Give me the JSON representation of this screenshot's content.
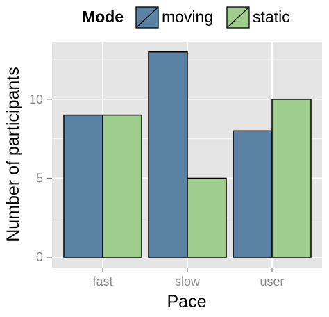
{
  "chart_data": {
    "type": "bar",
    "categories": [
      "fast",
      "slow",
      "user"
    ],
    "series": [
      {
        "name": "moving",
        "values": [
          9,
          13,
          8
        ]
      },
      {
        "name": "static",
        "values": [
          9,
          5,
          10
        ]
      }
    ],
    "xlabel": "Pace",
    "ylabel": "Number of participants",
    "ylim": [
      0,
      13.65
    ],
    "yticks": [
      0,
      5,
      10
    ],
    "grid": true,
    "legend": {
      "title": "Mode",
      "position": "top"
    },
    "colors": {
      "moving": "#5a82a4",
      "static": "#9fcd8d",
      "panel": "#e5e5e5",
      "grid": "#ffffff",
      "bar_outline": "#000000"
    }
  }
}
